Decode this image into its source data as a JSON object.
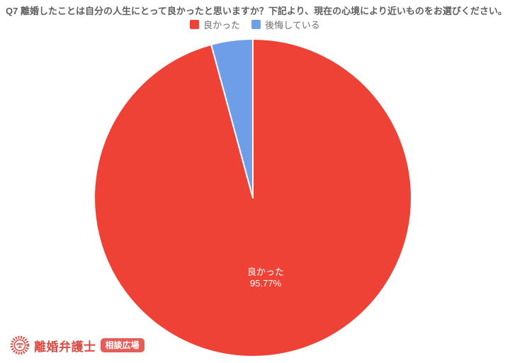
{
  "title": {
    "text": "Q7 離婚したことは自分の人生にとって良かったと思いますか？下記より、現在の心境により近いものをお選びください。"
  },
  "chart_data": {
    "type": "pie",
    "title": "Q7 離婚したことは自分の人生にとって良かったと思いますか？下記より、現在の心境により近いものをお選びください。",
    "labels": [
      "良かった",
      "後悔している"
    ],
    "values": [
      95.77,
      4.23
    ],
    "unit": "%",
    "colors": [
      "#ee4237",
      "#6f9ee8"
    ],
    "border_color": "#ffffff",
    "start_angle_deg": 0,
    "direction": "clockwise",
    "legend_position": "top",
    "data_labels": [
      {
        "slice": "良かった",
        "lines": [
          "良かった",
          "95.77%"
        ],
        "color": "#ffffff"
      }
    ]
  },
  "legend": {
    "items": [
      {
        "label": "良かった",
        "color": "#ee4237"
      },
      {
        "label": "後悔している",
        "color": "#6f9ee8"
      }
    ]
  },
  "footer_logo": {
    "icon": "seal-scales-icon",
    "brand_text": "離婚弁護士",
    "badge_text": "相談広場",
    "brand_color": "#d94c45",
    "badge_bg_color": "#e45d58",
    "badge_text_color": "#ffffff"
  }
}
